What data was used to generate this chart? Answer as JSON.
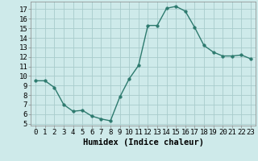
{
  "x": [
    0,
    1,
    2,
    3,
    4,
    5,
    6,
    7,
    8,
    9,
    10,
    11,
    12,
    13,
    14,
    15,
    16,
    17,
    18,
    19,
    20,
    21,
    22,
    23
  ],
  "y": [
    9.5,
    9.5,
    8.8,
    7.0,
    6.3,
    6.4,
    5.8,
    5.5,
    5.3,
    7.8,
    9.7,
    11.1,
    15.3,
    15.3,
    17.1,
    17.3,
    16.8,
    15.1,
    13.2,
    12.5,
    12.1,
    12.1,
    12.2,
    11.8
  ],
  "xlabel": "Humidex (Indice chaleur)",
  "ylim": [
    4.8,
    17.8
  ],
  "xlim": [
    -0.5,
    23.5
  ],
  "yticks": [
    5,
    6,
    7,
    8,
    9,
    10,
    11,
    12,
    13,
    14,
    15,
    16,
    17
  ],
  "xticks": [
    0,
    1,
    2,
    3,
    4,
    5,
    6,
    7,
    8,
    9,
    10,
    11,
    12,
    13,
    14,
    15,
    16,
    17,
    18,
    19,
    20,
    21,
    22,
    23
  ],
  "xtick_labels": [
    "0",
    "1",
    "2",
    "3",
    "4",
    "5",
    "6",
    "7",
    "8",
    "9",
    "10",
    "11",
    "12",
    "13",
    "14",
    "15",
    "16",
    "17",
    "18",
    "19",
    "20",
    "21",
    "22",
    "23"
  ],
  "line_color": "#2d7a6e",
  "marker": "o",
  "marker_size": 2.5,
  "bg_color": "#ceeaea",
  "grid_color": "#a8cccc",
  "xlabel_fontsize": 7.5,
  "tick_fontsize": 6.5
}
